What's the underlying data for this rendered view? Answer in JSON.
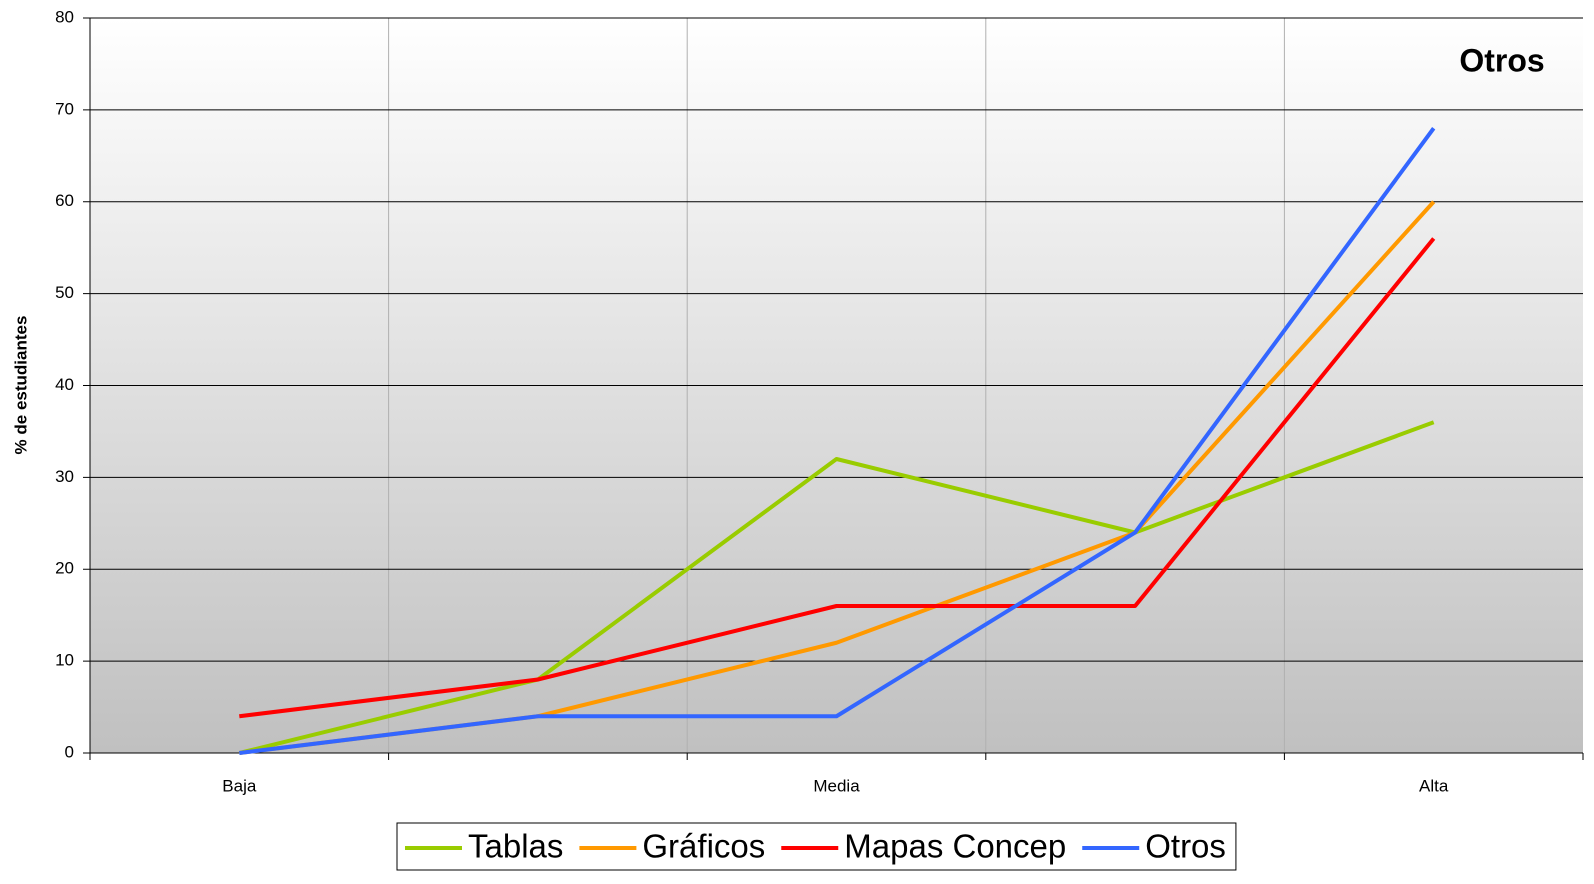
{
  "chart_data": {
    "type": "line",
    "title": "Otros",
    "y_label": "% de estudiantes",
    "categories": [
      "Baja",
      null,
      "Media",
      null,
      "Alta"
    ],
    "series": [
      {
        "name": "Tablas",
        "color": "#99cc00",
        "values": [
          0,
          8,
          32,
          24,
          36
        ]
      },
      {
        "name": "Gráficos",
        "color": "#ff9900",
        "values": [
          0,
          4,
          12,
          24,
          60
        ]
      },
      {
        "name": "Mapas Concep",
        "color": "#ff0000",
        "values": [
          4,
          8,
          16,
          16,
          56
        ]
      },
      {
        "name": "Otros",
        "color": "#3366ff",
        "values": [
          0,
          4,
          4,
          24,
          68
        ]
      }
    ],
    "ylim": [
      0,
      80
    ],
    "yticks": [
      0,
      10,
      20,
      30,
      40,
      50,
      60,
      70,
      80
    ],
    "grid": true,
    "legend": "bottom"
  }
}
